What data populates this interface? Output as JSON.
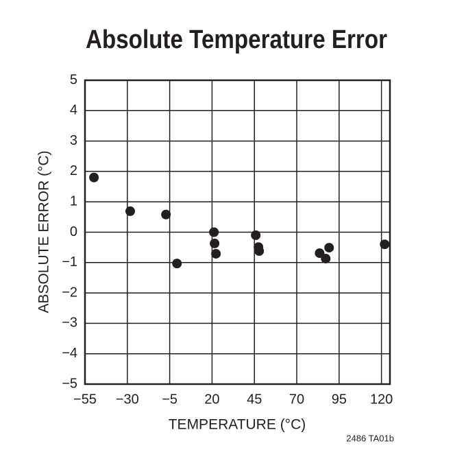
{
  "chart_data": {
    "type": "scatter",
    "title": "Absolute Temperature Error",
    "x_label": "TEMPERATURE (°C)",
    "y_label": "ABSOLUTE ERROR (°C)",
    "note": "2486 TA01b",
    "color": "#231f20",
    "grid": true,
    "x": [
      -49.7,
      -28.3,
      -7.2,
      -0.7,
      21.1,
      21.5,
      22.3,
      45.8,
      47.4,
      47.8,
      83.5,
      87.1,
      89.1,
      121.9
    ],
    "values": [
      1.8,
      0.69,
      0.58,
      -1.03,
      0.0,
      -0.37,
      -0.71,
      -0.1,
      -0.49,
      -0.62,
      -0.69,
      -0.87,
      -0.51,
      -0.4
    ],
    "xlim": [
      -55,
      125
    ],
    "ylim": [
      -5,
      5
    ],
    "xticks": [
      {
        "value": -55,
        "label": "−55"
      },
      {
        "value": -30,
        "label": "−30"
      },
      {
        "value": -5,
        "label": "−5"
      },
      20,
      45,
      70,
      95,
      120
    ],
    "yticks": [
      {
        "value": -5,
        "label": "−5"
      },
      {
        "value": -4,
        "label": "−4"
      },
      {
        "value": -3,
        "label": "−3"
      },
      {
        "value": -2,
        "label": "−2"
      },
      {
        "value": -1,
        "label": "−1"
      },
      0,
      1,
      2,
      3,
      4,
      5
    ]
  }
}
